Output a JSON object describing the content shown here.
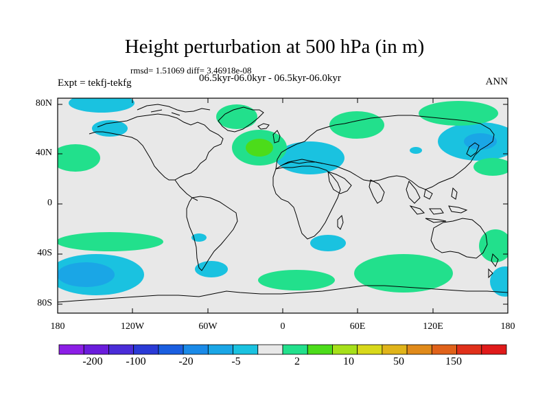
{
  "title": "Height perturbation at 500 hPa (in m)",
  "stats": "rmsd= 1.51069  diff= 3.46918e-08",
  "experiment": "Expt = tekfj-tekfg",
  "period": "06.5kyr-06.0kyr - 06.5kyr-06.0kyr",
  "season": "ANN",
  "lat_ticks": [
    "80N",
    "40N",
    "0",
    "40S",
    "80S"
  ],
  "lon_ticks": [
    "180",
    "120W",
    "60W",
    "0",
    "60E",
    "120E",
    "180"
  ],
  "colorbar": {
    "colors": [
      "#8c1ee6",
      "#6a1cdc",
      "#4a2cd8",
      "#2a3ad6",
      "#1a5ee0",
      "#1a8ae8",
      "#1aa6e6",
      "#1ac2e0",
      "#e8e8e8",
      "#22e08c",
      "#4cdc1a",
      "#a6e01a",
      "#d8d81a",
      "#e0b41a",
      "#e08a1a",
      "#e0621a",
      "#e0301a",
      "#e01a1a"
    ],
    "labels": [
      "-200",
      "-100",
      "-20",
      "-5",
      "2",
      "10",
      "50",
      "150"
    ]
  },
  "map": {
    "background": "#e8e8e8",
    "positive_light": "#22e08c",
    "positive_mid": "#4cdc1a",
    "negative_light": "#1ac2e0",
    "negative_mid": "#1aa6e6"
  }
}
